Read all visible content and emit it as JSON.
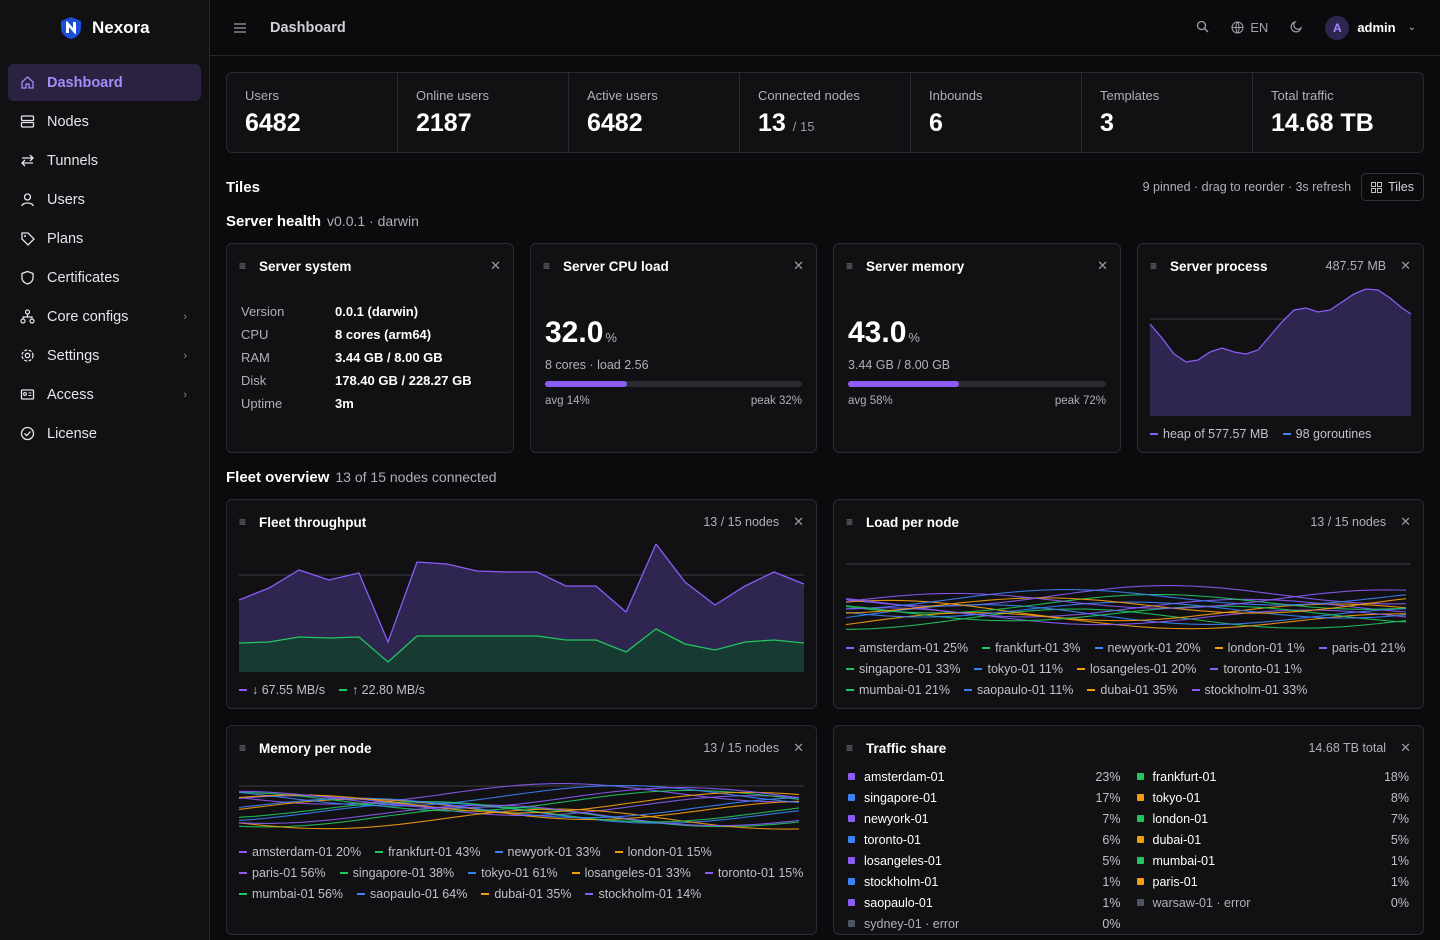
{
  "brand": {
    "name": "Nexora"
  },
  "sidebar": {
    "items": [
      {
        "label": "Dashboard",
        "icon": "home-icon",
        "active": true
      },
      {
        "label": "Nodes",
        "icon": "server-icon"
      },
      {
        "label": "Tunnels",
        "icon": "arrows-icon"
      },
      {
        "label": "Users",
        "icon": "user-icon"
      },
      {
        "label": "Plans",
        "icon": "tag-icon"
      },
      {
        "label": "Certificates",
        "icon": "shield-icon"
      },
      {
        "label": "Core configs",
        "icon": "network-icon",
        "chevron": true
      },
      {
        "label": "Settings",
        "icon": "gear-icon",
        "chevron": true
      },
      {
        "label": "Access",
        "icon": "id-card-icon",
        "chevron": true
      },
      {
        "label": "License",
        "icon": "badge-check-icon"
      }
    ]
  },
  "topbar": {
    "title": "Dashboard",
    "lang": "EN",
    "user": "admin",
    "avatar_letter": "A"
  },
  "stats": [
    {
      "label": "Users",
      "value": "6482",
      "sub": ""
    },
    {
      "label": "Online users",
      "value": "2187",
      "sub": ""
    },
    {
      "label": "Active users",
      "value": "6482",
      "sub": ""
    },
    {
      "label": "Connected nodes",
      "value": "13",
      "sub": "/ 15"
    },
    {
      "label": "Inbounds",
      "value": "6",
      "sub": ""
    },
    {
      "label": "Templates",
      "value": "3",
      "sub": ""
    },
    {
      "label": "Total traffic",
      "value": "14.68 TB",
      "sub": ""
    }
  ],
  "tiles": {
    "title": "Tiles",
    "meta": "9 pinned · drag to reorder · 3s refresh",
    "button": "Tiles"
  },
  "server_health": {
    "title": "Server health",
    "sub": "v0.0.1 · darwin"
  },
  "system": {
    "title": "Server system",
    "rows": [
      {
        "k": "Version",
        "v": "0.0.1 (darwin)"
      },
      {
        "k": "CPU",
        "v": "8 cores (arm64)"
      },
      {
        "k": "RAM",
        "v": "3.44 GB / 8.00 GB"
      },
      {
        "k": "Disk",
        "v": "178.40 GB / 228.27 GB"
      },
      {
        "k": "Uptime",
        "v": "3m"
      }
    ]
  },
  "cpu": {
    "title": "Server CPU load",
    "value": "32.0",
    "unit": "%",
    "sub": "8 cores · load 2.56",
    "fill": 0.32,
    "avg": "avg 14%",
    "peak": "peak 32%"
  },
  "memory": {
    "title": "Server memory",
    "value": "43.0",
    "unit": "%",
    "sub": "3.44 GB / 8.00 GB",
    "fill": 0.43,
    "avg": "avg 58%",
    "peak": "peak 72%"
  },
  "process": {
    "title": "Server process",
    "meta": "487.57 MB",
    "legend": [
      "heap of 577.57 MB",
      "98 goroutines"
    ]
  },
  "fleet": {
    "title": "Fleet overview",
    "sub": "13 of 15 nodes connected"
  },
  "throughput": {
    "title": "Fleet throughput",
    "meta": "13 / 15 nodes",
    "legend": [
      "↓ 67.55 MB/s",
      "↑ 22.80 MB/s"
    ]
  },
  "load": {
    "title": "Load per node",
    "meta": "13 / 15 nodes",
    "legend": [
      {
        "label": "amsterdam-01 25%",
        "color": "#8b5cf6"
      },
      {
        "label": "frankfurt-01 3%",
        "color": "#22c55e"
      },
      {
        "label": "newyork-01 20%",
        "color": "#3b82f6"
      },
      {
        "label": "london-01 1%",
        "color": "#f59e0b"
      },
      {
        "label": "paris-01 21%",
        "color": "#8b5cf6"
      },
      {
        "label": "singapore-01 33%",
        "color": "#22c55e"
      },
      {
        "label": "tokyo-01 11%",
        "color": "#3b82f6"
      },
      {
        "label": "losangeles-01 20%",
        "color": "#f59e0b"
      },
      {
        "label": "toronto-01 1%",
        "color": "#8b5cf6"
      },
      {
        "label": "mumbai-01 21%",
        "color": "#22c55e"
      },
      {
        "label": "saopaulo-01 11%",
        "color": "#3b82f6"
      },
      {
        "label": "dubai-01 35%",
        "color": "#f59e0b"
      },
      {
        "label": "stockholm-01 33%",
        "color": "#8b5cf6"
      }
    ]
  },
  "memnode": {
    "title": "Memory per node",
    "meta": "13 / 15 nodes",
    "legend": [
      {
        "label": "amsterdam-01 20%",
        "color": "#8b5cf6"
      },
      {
        "label": "frankfurt-01 43%",
        "color": "#22c55e"
      },
      {
        "label": "newyork-01 33%",
        "color": "#3b82f6"
      },
      {
        "label": "london-01 15%",
        "color": "#f59e0b"
      },
      {
        "label": "paris-01 56%",
        "color": "#8b5cf6"
      },
      {
        "label": "singapore-01 38%",
        "color": "#22c55e"
      },
      {
        "label": "tokyo-01 61%",
        "color": "#3b82f6"
      },
      {
        "label": "losangeles-01 33%",
        "color": "#f59e0b"
      },
      {
        "label": "toronto-01 15%",
        "color": "#8b5cf6"
      },
      {
        "label": "mumbai-01 56%",
        "color": "#22c55e"
      },
      {
        "label": "saopaulo-01 64%",
        "color": "#3b82f6"
      },
      {
        "label": "dubai-01 35%",
        "color": "#f59e0b"
      },
      {
        "label": "stockholm-01 14%",
        "color": "#8b5cf6"
      }
    ]
  },
  "share": {
    "title": "Traffic share",
    "meta": "14.68 TB total",
    "left": [
      {
        "name": "amsterdam-01",
        "pct": "23%",
        "color": "#8b5cf6"
      },
      {
        "name": "singapore-01",
        "pct": "17%",
        "color": "#3b82f6"
      },
      {
        "name": "newyork-01",
        "pct": "7%",
        "color": "#8b5cf6"
      },
      {
        "name": "toronto-01",
        "pct": "6%",
        "color": "#3b82f6"
      },
      {
        "name": "losangeles-01",
        "pct": "5%",
        "color": "#8b5cf6"
      },
      {
        "name": "stockholm-01",
        "pct": "1%",
        "color": "#3b82f6"
      },
      {
        "name": "saopaulo-01",
        "pct": "1%",
        "color": "#8b5cf6"
      },
      {
        "name": "sydney-01 · error",
        "pct": "0%",
        "color": "#4b5563",
        "err": true
      }
    ],
    "right": [
      {
        "name": "frankfurt-01",
        "pct": "18%",
        "color": "#22c55e"
      },
      {
        "name": "tokyo-01",
        "pct": "8%",
        "color": "#f59e0b"
      },
      {
        "name": "london-01",
        "pct": "7%",
        "color": "#22c55e"
      },
      {
        "name": "dubai-01",
        "pct": "5%",
        "color": "#f59e0b"
      },
      {
        "name": "mumbai-01",
        "pct": "1%",
        "color": "#22c55e"
      },
      {
        "name": "paris-01",
        "pct": "1%",
        "color": "#f59e0b"
      },
      {
        "name": "warsaw-01 · error",
        "pct": "0%",
        "color": "#4b5563",
        "err": true
      }
    ]
  }
}
